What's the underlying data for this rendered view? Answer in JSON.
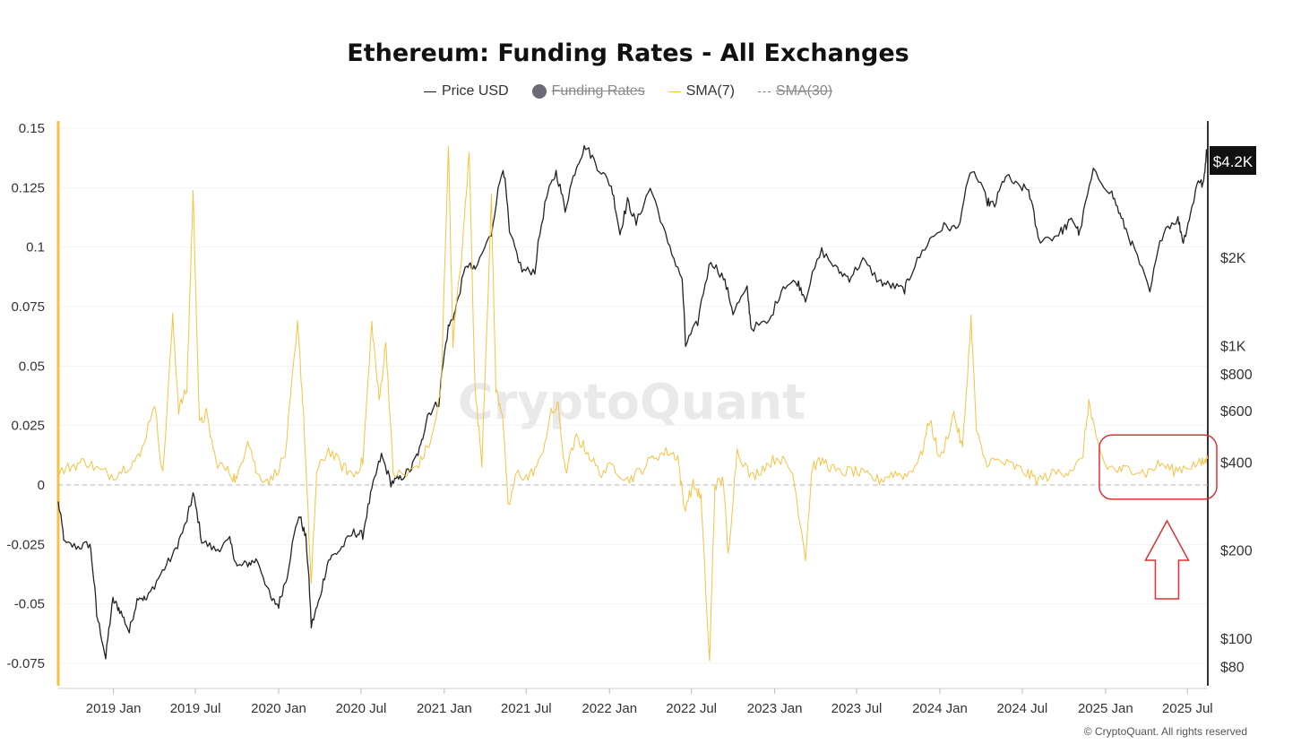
{
  "chart_data": {
    "type": "line",
    "title": "Ethereum: Funding Rates - All Exchanges",
    "legend": [
      {
        "name": "Price USD",
        "style": "solid",
        "color": "#222222",
        "hidden": false
      },
      {
        "name": "Funding Rates",
        "style": "dot",
        "color": "#6b6b78",
        "hidden": true
      },
      {
        "name": "SMA(7)",
        "style": "solid",
        "color": "#f5c242",
        "hidden": false
      },
      {
        "name": "SMA(30)",
        "style": "dash",
        "color": "#777777",
        "hidden": true
      }
    ],
    "x_ticks": [
      "2019 Jan",
      "2019 Jul",
      "2020 Jan",
      "2020 Jul",
      "2021 Jan",
      "2021 Jul",
      "2022 Jan",
      "2022 Jul",
      "2023 Jan",
      "2023 Jul",
      "2024 Jan",
      "2024 Jul",
      "2025 Jan",
      "2025 Jul"
    ],
    "x_range": [
      "2018-09-01",
      "2025-08-15"
    ],
    "left_axis": {
      "ticks": [
        "0.15",
        "0.125",
        "0.1",
        "0.075",
        "0.05",
        "0.025",
        "0",
        "-0.025",
        "-0.05",
        "-0.075"
      ],
      "range": [
        -0.085,
        0.155
      ]
    },
    "right_axis": {
      "scale": "log",
      "ticks": [
        "$2K",
        "$1K",
        "$800",
        "$600",
        "$400",
        "$200",
        "$100",
        "$80"
      ],
      "current_price_label": "$4.2K"
    },
    "series": [
      {
        "name": "Price USD",
        "axis": "right",
        "color": "#222222",
        "points": [
          [
            "2018-09-01",
            290
          ],
          [
            "2018-09-15",
            210
          ],
          [
            "2018-10-15",
            205
          ],
          [
            "2018-11-10",
            210
          ],
          [
            "2018-11-25",
            120
          ],
          [
            "2018-12-15",
            85
          ],
          [
            "2018-12-31",
            135
          ],
          [
            "2019-01-15",
            125
          ],
          [
            "2019-02-05",
            105
          ],
          [
            "2019-02-25",
            140
          ],
          [
            "2019-03-15",
            135
          ],
          [
            "2019-04-15",
            165
          ],
          [
            "2019-05-15",
            195
          ],
          [
            "2019-06-10",
            245
          ],
          [
            "2019-06-26",
            310
          ],
          [
            "2019-07-15",
            215
          ],
          [
            "2019-08-15",
            200
          ],
          [
            "2019-09-15",
            215
          ],
          [
            "2019-10-01",
            175
          ],
          [
            "2019-10-25",
            180
          ],
          [
            "2019-11-15",
            185
          ],
          [
            "2019-12-15",
            135
          ],
          [
            "2020-01-01",
            130
          ],
          [
            "2020-01-20",
            165
          ],
          [
            "2020-02-15",
            265
          ],
          [
            "2020-03-01",
            220
          ],
          [
            "2020-03-13",
            110
          ],
          [
            "2020-03-31",
            135
          ],
          [
            "2020-04-20",
            185
          ],
          [
            "2020-05-15",
            200
          ],
          [
            "2020-06-15",
            230
          ],
          [
            "2020-07-05",
            225
          ],
          [
            "2020-07-25",
            320
          ],
          [
            "2020-08-15",
            420
          ],
          [
            "2020-09-05",
            340
          ],
          [
            "2020-09-25",
            350
          ],
          [
            "2020-10-20",
            380
          ],
          [
            "2020-11-10",
            450
          ],
          [
            "2020-11-25",
            580
          ],
          [
            "2020-12-20",
            640
          ],
          [
            "2021-01-10",
            1150
          ],
          [
            "2021-01-25",
            1300
          ],
          [
            "2021-02-20",
            1900
          ],
          [
            "2021-03-10",
            1800
          ],
          [
            "2021-04-15",
            2400
          ],
          [
            "2021-05-11",
            4100
          ],
          [
            "2021-05-25",
            2400
          ],
          [
            "2021-06-22",
            1800
          ],
          [
            "2021-07-20",
            1800
          ],
          [
            "2021-08-15",
            3200
          ],
          [
            "2021-09-05",
            3900
          ],
          [
            "2021-09-25",
            2900
          ],
          [
            "2021-10-20",
            4100
          ],
          [
            "2021-11-09",
            4800
          ],
          [
            "2021-12-05",
            4100
          ],
          [
            "2022-01-05",
            3500
          ],
          [
            "2022-01-24",
            2400
          ],
          [
            "2022-02-10",
            3100
          ],
          [
            "2022-03-01",
            2600
          ],
          [
            "2022-04-01",
            3450
          ],
          [
            "2022-05-10",
            2200
          ],
          [
            "2022-06-10",
            1700
          ],
          [
            "2022-06-18",
            1000
          ],
          [
            "2022-07-15",
            1200
          ],
          [
            "2022-08-13",
            1950
          ],
          [
            "2022-09-10",
            1700
          ],
          [
            "2022-10-01",
            1300
          ],
          [
            "2022-11-01",
            1550
          ],
          [
            "2022-11-10",
            1150
          ],
          [
            "2022-12-20",
            1200
          ],
          [
            "2023-01-20",
            1600
          ],
          [
            "2023-02-20",
            1650
          ],
          [
            "2023-03-10",
            1450
          ],
          [
            "2023-04-15",
            2100
          ],
          [
            "2023-05-20",
            1800
          ],
          [
            "2023-06-15",
            1700
          ],
          [
            "2023-07-15",
            1950
          ],
          [
            "2023-08-20",
            1650
          ],
          [
            "2023-09-15",
            1600
          ],
          [
            "2023-10-15",
            1550
          ],
          [
            "2023-11-01",
            1800
          ],
          [
            "2023-12-10",
            2300
          ],
          [
            "2024-01-10",
            2550
          ],
          [
            "2024-02-10",
            2500
          ],
          [
            "2024-03-12",
            4000
          ],
          [
            "2024-04-15",
            3100
          ],
          [
            "2024-05-01",
            3000
          ],
          [
            "2024-05-25",
            3800
          ],
          [
            "2024-06-20",
            3500
          ],
          [
            "2024-07-15",
            3400
          ],
          [
            "2024-08-05",
            2300
          ],
          [
            "2024-09-10",
            2350
          ],
          [
            "2024-10-01",
            2500
          ],
          [
            "2024-10-20",
            2700
          ],
          [
            "2024-11-05",
            2400
          ],
          [
            "2024-12-05",
            3900
          ],
          [
            "2025-01-15",
            3300
          ],
          [
            "2025-02-05",
            2700
          ],
          [
            "2025-03-01",
            2200
          ],
          [
            "2025-04-09",
            1500
          ],
          [
            "2025-05-10",
            2500
          ],
          [
            "2025-06-10",
            2700
          ],
          [
            "2025-06-22",
            2250
          ],
          [
            "2025-07-10",
            2900
          ],
          [
            "2025-07-25",
            3700
          ],
          [
            "2025-08-05",
            3500
          ],
          [
            "2025-08-13",
            4700
          ],
          [
            "2025-08-15",
            4250
          ]
        ]
      },
      {
        "name": "SMA(7)",
        "axis": "left",
        "color": "#f5c242",
        "points": [
          [
            "2018-09-01",
            0.005
          ],
          [
            "2018-10-01",
            0.008
          ],
          [
            "2018-11-01",
            0.01
          ],
          [
            "2018-12-01",
            0.006
          ],
          [
            "2019-01-01",
            0.004
          ],
          [
            "2019-02-01",
            0.008
          ],
          [
            "2019-03-01",
            0.012
          ],
          [
            "2019-04-01",
            0.035
          ],
          [
            "2019-04-20",
            0.004
          ],
          [
            "2019-05-12",
            0.07
          ],
          [
            "2019-05-25",
            0.032
          ],
          [
            "2019-06-12",
            0.04
          ],
          [
            "2019-06-26",
            0.123
          ],
          [
            "2019-07-10",
            0.025
          ],
          [
            "2019-07-25",
            0.03
          ],
          [
            "2019-08-15",
            0.01
          ],
          [
            "2019-09-15",
            0.005
          ],
          [
            "2019-10-01",
            0.002
          ],
          [
            "2019-10-25",
            0.02
          ],
          [
            "2019-11-15",
            0.004
          ],
          [
            "2019-12-15",
            0.002
          ],
          [
            "2020-01-15",
            0.012
          ],
          [
            "2020-02-12",
            0.067
          ],
          [
            "2020-02-25",
            0.03
          ],
          [
            "2020-03-13",
            -0.042
          ],
          [
            "2020-03-25",
            0.005
          ],
          [
            "2020-04-20",
            0.015
          ],
          [
            "2020-05-20",
            0.008
          ],
          [
            "2020-06-15",
            0.004
          ],
          [
            "2020-07-05",
            0.01
          ],
          [
            "2020-07-25",
            0.068
          ],
          [
            "2020-08-10",
            0.035
          ],
          [
            "2020-08-25",
            0.06
          ],
          [
            "2020-09-10",
            0.005
          ],
          [
            "2020-10-10",
            0.004
          ],
          [
            "2020-11-10",
            0.01
          ],
          [
            "2020-12-05",
            0.02
          ],
          [
            "2020-12-25",
            0.04
          ],
          [
            "2021-01-10",
            0.143
          ],
          [
            "2021-01-20",
            0.06
          ],
          [
            "2021-02-10",
            0.1
          ],
          [
            "2021-02-25",
            0.14
          ],
          [
            "2021-03-10",
            0.04
          ],
          [
            "2021-03-25",
            0.01
          ],
          [
            "2021-04-15",
            0.12
          ],
          [
            "2021-04-25",
            0.04
          ],
          [
            "2021-05-10",
            0.03
          ],
          [
            "2021-05-22",
            -0.01
          ],
          [
            "2021-06-10",
            0.005
          ],
          [
            "2021-07-05",
            0.003
          ],
          [
            "2021-08-01",
            0.01
          ],
          [
            "2021-08-25",
            0.03
          ],
          [
            "2021-09-10",
            0.033
          ],
          [
            "2021-09-25",
            0.005
          ],
          [
            "2021-10-20",
            0.02
          ],
          [
            "2021-11-10",
            0.015
          ],
          [
            "2021-12-10",
            0.005
          ],
          [
            "2022-01-10",
            0.008
          ],
          [
            "2022-02-10",
            0.002
          ],
          [
            "2022-03-10",
            0.006
          ],
          [
            "2022-04-10",
            0.012
          ],
          [
            "2022-05-10",
            0.014
          ],
          [
            "2022-06-01",
            0.012
          ],
          [
            "2022-06-15",
            -0.01
          ],
          [
            "2022-07-05",
            0.0
          ],
          [
            "2022-07-22",
            -0.005
          ],
          [
            "2022-08-10",
            -0.075
          ],
          [
            "2022-08-22",
            0.0
          ],
          [
            "2022-09-10",
            0.002
          ],
          [
            "2022-09-20",
            -0.03
          ],
          [
            "2022-10-10",
            0.015
          ],
          [
            "2022-11-10",
            0.003
          ],
          [
            "2022-12-10",
            0.008
          ],
          [
            "2023-01-10",
            0.012
          ],
          [
            "2023-02-10",
            0.005
          ],
          [
            "2023-03-10",
            -0.03
          ],
          [
            "2023-03-25",
            0.008
          ],
          [
            "2023-04-20",
            0.01
          ],
          [
            "2023-05-20",
            0.005
          ],
          [
            "2023-06-20",
            0.006
          ],
          [
            "2023-07-20",
            0.004
          ],
          [
            "2023-08-20",
            0.002
          ],
          [
            "2023-09-20",
            0.005
          ],
          [
            "2023-10-20",
            0.004
          ],
          [
            "2023-11-20",
            0.012
          ],
          [
            "2023-12-10",
            0.028
          ],
          [
            "2024-01-01",
            0.01
          ],
          [
            "2024-02-01",
            0.03
          ],
          [
            "2024-02-20",
            0.015
          ],
          [
            "2024-03-10",
            0.07
          ],
          [
            "2024-03-22",
            0.022
          ],
          [
            "2024-04-10",
            0.01
          ],
          [
            "2024-05-10",
            0.01
          ],
          [
            "2024-06-10",
            0.008
          ],
          [
            "2024-07-10",
            0.005
          ],
          [
            "2024-08-05",
            0.002
          ],
          [
            "2024-09-10",
            0.005
          ],
          [
            "2024-10-10",
            0.006
          ],
          [
            "2024-11-10",
            0.01
          ],
          [
            "2024-11-25",
            0.035
          ],
          [
            "2024-12-10",
            0.02
          ],
          [
            "2025-01-01",
            0.008
          ],
          [
            "2025-02-01",
            0.006
          ],
          [
            "2025-03-01",
            0.007
          ],
          [
            "2025-04-01",
            0.005
          ],
          [
            "2025-05-01",
            0.009
          ],
          [
            "2025-06-01",
            0.006
          ],
          [
            "2025-07-01",
            0.008
          ],
          [
            "2025-08-01",
            0.009
          ],
          [
            "2025-08-15",
            0.011
          ]
        ]
      }
    ],
    "annotation": {
      "shape": "rounded-rect-and-arrow",
      "color": "#e03030",
      "from": "2025-01-15",
      "to": "2025-08-15",
      "y_from": -0.006,
      "y_to": 0.021
    }
  },
  "watermark": "CryptoQuant",
  "footer": {
    "copyright": "© CryptoQuant. All rights reserved"
  }
}
